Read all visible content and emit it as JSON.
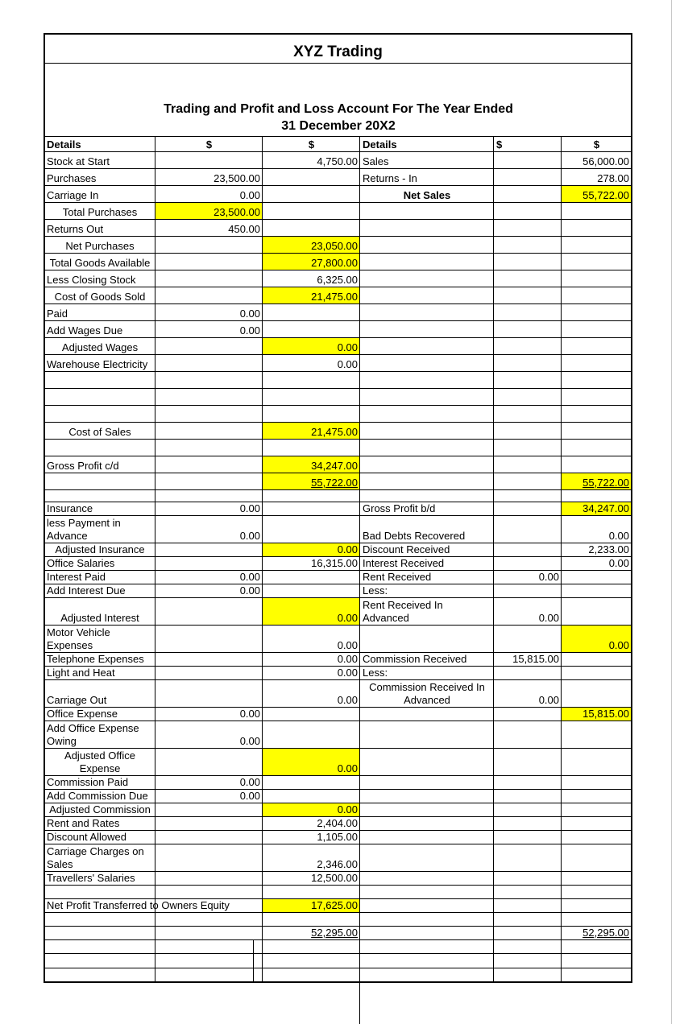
{
  "header": {
    "title": "XYZ Trading",
    "subtitle": "Trading and Profit and Loss Account For The Year Ended 31 December 20X2"
  },
  "table": {
    "highlight_color": "#ffff00",
    "rows": [
      {
        "cells": [
          "Details",
          "$",
          "$",
          "Details",
          "$",
          "$"
        ]
      },
      {
        "cells": [
          "Stock at Start",
          null,
          "4,750.00",
          "Sales",
          null,
          "56,000.00"
        ]
      },
      {
        "cells": [
          "Purchases",
          "23,500.00",
          null,
          "Returns - In",
          null,
          "278.00"
        ]
      },
      {
        "cells": [
          "Carriage In",
          "0.00",
          null,
          "Net Sales",
          null,
          "55,722.00"
        ],
        "highlight": [
          5
        ]
      },
      {
        "cells": [
          "Total Purchases",
          "23,500.00",
          null,
          null,
          null,
          null
        ],
        "highlight": [
          1
        ]
      },
      {
        "cells": [
          "Returns Out",
          "450.00",
          null,
          null,
          null,
          null
        ]
      },
      {
        "cells": [
          "Net Purchases",
          null,
          "23,050.00",
          null,
          null,
          null
        ],
        "highlight": [
          2
        ]
      },
      {
        "cells": [
          "Total Goods Available",
          null,
          "27,800.00",
          null,
          null,
          null
        ],
        "highlight": [
          2
        ]
      },
      {
        "cells": [
          "Less Closing Stock",
          null,
          "6,325.00",
          null,
          null,
          null
        ]
      },
      {
        "cells": [
          "Cost of Goods Sold",
          null,
          "21,475.00",
          null,
          null,
          null
        ],
        "highlight": [
          2
        ]
      },
      {
        "cells": [
          "Paid",
          "0.00",
          null,
          null,
          null,
          null
        ]
      },
      {
        "cells": [
          "Add Wages Due",
          "0.00",
          null,
          null,
          null,
          null
        ]
      },
      {
        "cells": [
          "Adjusted Wages",
          null,
          "0.00",
          null,
          null,
          null
        ],
        "highlight": [
          2
        ]
      },
      {
        "cells": [
          "Warehouse Electricity",
          null,
          "0.00",
          null,
          null,
          null
        ]
      },
      {
        "cells": [
          null,
          null,
          null,
          null,
          null,
          null
        ]
      },
      {
        "cells": [
          null,
          null,
          null,
          null,
          null,
          null
        ]
      },
      {
        "cells": [
          null,
          null,
          null,
          null,
          null,
          null
        ]
      },
      {
        "cells": [
          "Cost of Sales",
          null,
          "21,475.00",
          null,
          null,
          null
        ],
        "highlight": [
          2
        ]
      },
      {
        "cells": [
          null,
          null,
          null,
          null,
          null,
          null
        ]
      },
      {
        "cells": [
          "Gross Profit c/d",
          null,
          "34,247.00",
          null,
          null,
          null
        ],
        "highlight": [
          2
        ]
      },
      {
        "cells": [
          null,
          null,
          "55,722.00",
          null,
          null,
          "55,722.00"
        ],
        "highlight": [
          2,
          5
        ],
        "underline": [
          2,
          5
        ]
      },
      {
        "cells": [
          null,
          null,
          null,
          null,
          null,
          null
        ]
      },
      {
        "cells": [
          "Insurance",
          "0.00",
          null,
          "Gross Profit b/d",
          null,
          "34,247.00"
        ],
        "highlight": [
          5
        ]
      },
      {
        "cells": [
          "less Payment in Advance",
          "0.00",
          null,
          "Bad Debts Recovered",
          null,
          "0.00"
        ]
      },
      {
        "cells": [
          "Adjusted Insurance",
          null,
          "0.00",
          "Discount Received",
          null,
          "2,233.00"
        ],
        "highlight": [
          2
        ]
      },
      {
        "cells": [
          "Office Salaries",
          null,
          "16,315.00",
          "Interest Received",
          null,
          "0.00"
        ]
      },
      {
        "cells": [
          "Interest Paid",
          "0.00",
          null,
          "Rent Received",
          "0.00",
          null
        ]
      },
      {
        "cells": [
          "Add Interest Due",
          "0.00",
          null,
          "Less:",
          null,
          null
        ]
      },
      {
        "cells": [
          "Adjusted Interest",
          null,
          "0.00",
          "Rent Received In Advanced",
          "0.00",
          null
        ],
        "highlight": [
          2
        ]
      },
      {
        "cells": [
          "Motor Vehicle Expenses",
          null,
          "0.00",
          null,
          null,
          "0.00"
        ],
        "highlight": [
          5
        ]
      },
      {
        "cells": [
          "Telephone Expenses",
          null,
          "0.00",
          "Commission Received",
          "15,815.00",
          null
        ]
      },
      {
        "cells": [
          "Light and Heat",
          null,
          "0.00",
          "Less:",
          null,
          null
        ]
      },
      {
        "cells": [
          "Carriage Out",
          null,
          "0.00",
          "Commission Received In Advanced",
          "0.00",
          null
        ]
      },
      {
        "cells": [
          "Office Expense",
          "0.00",
          null,
          null,
          null,
          "15,815.00"
        ],
        "highlight": [
          5
        ]
      },
      {
        "cells": [
          "Add Office Expense Owing",
          "0.00",
          null,
          null,
          null,
          null
        ]
      },
      {
        "cells": [
          "Adjusted Office Expense",
          null,
          "0.00",
          null,
          null,
          null
        ],
        "highlight": [
          2
        ]
      },
      {
        "cells": [
          "Commission Paid",
          "0.00",
          null,
          null,
          null,
          null
        ]
      },
      {
        "cells": [
          "Add Commission Due",
          "0.00",
          null,
          null,
          null,
          null
        ]
      },
      {
        "cells": [
          "Adjusted Commission",
          null,
          "0.00",
          null,
          null,
          null
        ],
        "highlight": [
          2
        ]
      },
      {
        "cells": [
          "Rent and Rates",
          null,
          "2,404.00",
          null,
          null,
          null
        ]
      },
      {
        "cells": [
          "Discount Allowed",
          null,
          "1,105.00",
          null,
          null,
          null
        ]
      },
      {
        "cells": [
          "Carriage Charges on Sales",
          null,
          "2,346.00",
          null,
          null,
          null
        ]
      },
      {
        "cells": [
          "Travellers' Salaries",
          null,
          "12,500.00",
          null,
          null,
          null
        ]
      },
      {
        "cells": [
          null,
          null,
          null,
          null,
          null,
          null
        ]
      },
      {
        "cells": [
          "Net Profit Transferred to Owners Equity",
          null,
          "17,625.00",
          null,
          null,
          null
        ],
        "highlight": [
          2
        ]
      },
      {
        "cells": [
          null,
          null,
          null,
          null,
          null,
          null
        ]
      },
      {
        "cells": [
          null,
          null,
          "52,295.00",
          null,
          null,
          "52,295.00"
        ],
        "underline": [
          2,
          5
        ]
      },
      {
        "cells": [
          null,
          null,
          null,
          null,
          null,
          null
        ]
      },
      {
        "cells": [
          null,
          null,
          null,
          null,
          null,
          null
        ]
      },
      {
        "cells": [
          null,
          null,
          null,
          null,
          null,
          null
        ]
      }
    ]
  }
}
